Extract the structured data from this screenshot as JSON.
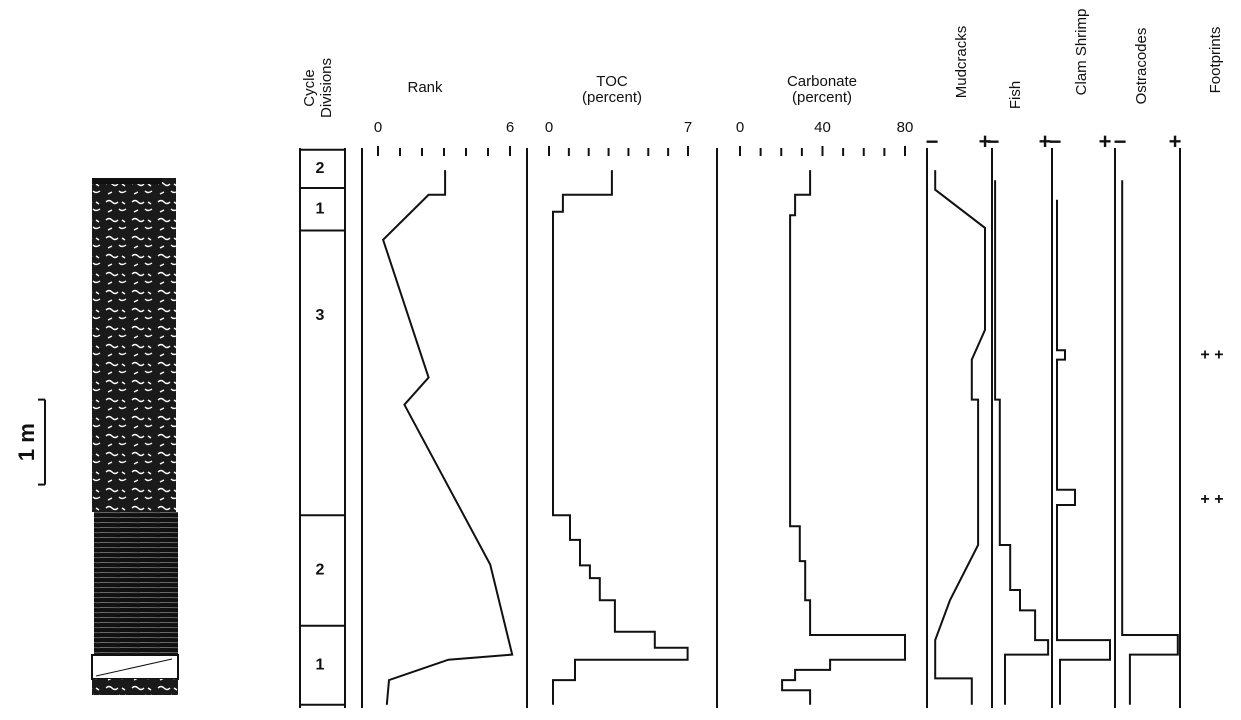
{
  "chart_data": [
    {
      "type": "core",
      "scale_label": "1 m",
      "scale_bar": [
        2.96,
        3.96
      ],
      "ylim": [
        0,
        6.6
      ]
    },
    {
      "type": "cycles",
      "title": [
        "Cycle",
        "Divisions"
      ],
      "labels": [
        "2",
        "1",
        "3",
        "2",
        "1"
      ],
      "boundaries": [
        0.02,
        0.47,
        0.97,
        4.32,
        5.62,
        6.55
      ],
      "ylim": [
        0,
        6.6
      ]
    },
    {
      "type": "line",
      "title": [
        "Rank"
      ],
      "xlim": [
        0,
        6
      ],
      "xticks": [
        0,
        6
      ],
      "minor_xticks": [
        1,
        2,
        3,
        4,
        5
      ],
      "ylim": [
        0,
        6.6
      ],
      "depth": [
        0.26,
        0.55,
        0.55,
        1.08,
        2.7,
        3.02,
        4.9,
        5.96,
        6.02,
        6.26,
        6.55
      ],
      "values": [
        3.05,
        3.05,
        2.3,
        0.23,
        2.3,
        1.2,
        5.1,
        6.1,
        3.2,
        0.5,
        0.4
      ]
    },
    {
      "type": "line",
      "title": [
        "TOC",
        "(percent)"
      ],
      "xlim": [
        0,
        7
      ],
      "xticks": [
        0,
        7
      ],
      "minor_xticks": [
        1,
        2,
        3,
        4,
        5,
        6
      ],
      "ylim": [
        0,
        6.6
      ],
      "depth": [
        0.26,
        0.55,
        0.55,
        0.75,
        0.75,
        4.32,
        4.32,
        4.61,
        4.61,
        4.91,
        4.91,
        5.06,
        5.06,
        5.32,
        5.32,
        5.69,
        5.69,
        5.88,
        5.88,
        6.02,
        6.02,
        6.26,
        6.26,
        6.55
      ],
      "values": [
        3.17,
        3.17,
        0.7,
        0.7,
        0.2,
        0.2,
        1.06,
        1.06,
        1.56,
        1.56,
        2.06,
        2.06,
        2.56,
        2.56,
        3.32,
        3.32,
        5.33,
        5.33,
        6.98,
        6.98,
        1.31,
        1.31,
        0.2,
        0.2
      ]
    },
    {
      "type": "line",
      "title": [
        "Carbonate",
        "(percent)"
      ],
      "xlim": [
        0,
        80
      ],
      "xticks": [
        0,
        40,
        80
      ],
      "minor_xticks": [
        10,
        20,
        30,
        50,
        60,
        70
      ],
      "ylim": [
        0,
        6.6
      ],
      "depth": [
        0.26,
        0.55,
        0.55,
        0.79,
        0.79,
        4.45,
        4.45,
        4.86,
        4.86,
        5.32,
        5.32,
        5.73,
        5.73,
        6.02,
        6.02,
        6.14,
        6.14,
        6.26,
        6.26,
        6.38,
        6.38,
        6.55
      ],
      "values": [
        34,
        34,
        26.7,
        26.7,
        24.3,
        24.3,
        29,
        29,
        31.6,
        31.6,
        34,
        34,
        80,
        80,
        43.7,
        43.7,
        26.7,
        26.7,
        20.4,
        20.4,
        34,
        34
      ]
    },
    {
      "type": "line",
      "title": [
        "Mudcracks"
      ],
      "xlim": [
        0,
        1
      ],
      "xticks": [
        {
          "value": 0,
          "label": "−"
        },
        {
          "value": 1,
          "label": "+"
        }
      ],
      "ylim": [
        0,
        6.6
      ],
      "depth": [
        0.26,
        0.49,
        0.94,
        2.14,
        2.49,
        2.96,
        2.96,
        4.67,
        5.32,
        5.79,
        6.24,
        6.24,
        6.55
      ],
      "values": [
        0.06,
        0.06,
        1,
        1,
        0.75,
        0.75,
        0.87,
        0.87,
        0.34,
        0.06,
        0.06,
        0.75,
        0.75
      ]
    },
    {
      "type": "line",
      "title": [
        "Fish"
      ],
      "xlim": [
        0,
        1
      ],
      "xticks": [
        {
          "value": 0,
          "label": "−"
        },
        {
          "value": 1,
          "label": "+"
        }
      ],
      "ylim": [
        0,
        6.6
      ],
      "depth": [
        0.38,
        2.96,
        2.96,
        4.67,
        4.67,
        5.2,
        5.2,
        5.44,
        5.44,
        5.79,
        5.79,
        5.96,
        5.96,
        6.55
      ],
      "values": [
        0.04,
        0.04,
        0.13,
        0.13,
        0.33,
        0.33,
        0.52,
        0.52,
        0.81,
        0.81,
        1.06,
        1.06,
        0.23,
        0.23
      ]
    },
    {
      "type": "line",
      "title": [
        "Clam Shrimp"
      ],
      "xlim": [
        0,
        1
      ],
      "xticks": [
        {
          "value": 0,
          "label": "−"
        },
        {
          "value": 1,
          "label": "+"
        }
      ],
      "ylim": [
        0,
        6.6
      ],
      "depth": [
        0.61,
        2.38,
        2.38,
        2.49,
        2.49,
        4.02,
        4.02,
        4.2,
        4.2,
        5.79,
        5.79,
        6.02,
        6.02,
        6.55
      ],
      "values": [
        0.04,
        0.04,
        0.2,
        0.2,
        0.04,
        0.04,
        0.4,
        0.4,
        0.04,
        0.04,
        1.1,
        1.1,
        0.1,
        0.1
      ]
    },
    {
      "type": "line",
      "title": [
        "Ostracodes"
      ],
      "xlim": [
        0,
        1
      ],
      "xticks": [
        {
          "value": 0,
          "label": "−"
        },
        {
          "value": 1,
          "label": "+"
        }
      ],
      "ylim": [
        0,
        6.6
      ],
      "depth": [
        0.38,
        5.73,
        5.73,
        5.96,
        5.96,
        6.55
      ],
      "values": [
        0.04,
        0.04,
        1.05,
        1.05,
        0.18,
        0.18
      ]
    },
    {
      "type": "marks",
      "title": [
        "Footprints"
      ],
      "labels": [
        "+ +",
        "+ +"
      ],
      "depth": [
        2.44,
        4.14
      ],
      "ylim": [
        0,
        6.6
      ]
    }
  ]
}
